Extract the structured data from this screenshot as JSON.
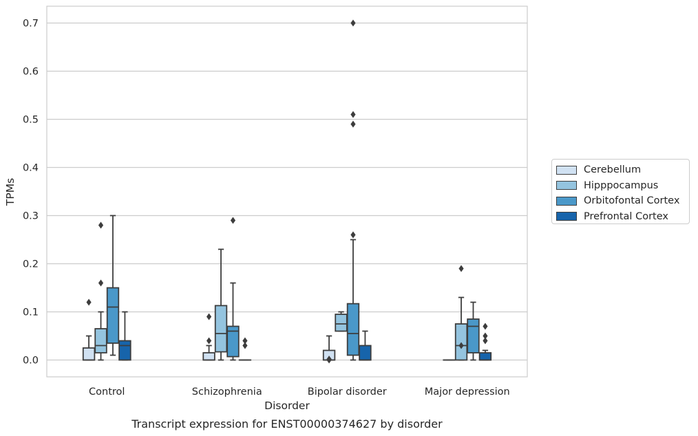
{
  "chart_data": {
    "type": "box",
    "title": "Transcript expression for ENST00000374627 by disorder",
    "xlabel": "Disorder",
    "ylabel": "TPMs",
    "ylim": [
      -0.035,
      0.735
    ],
    "yticks": [
      "0.0",
      "0.1",
      "0.2",
      "0.3",
      "0.4",
      "0.5",
      "0.6",
      "0.7"
    ],
    "grid": true,
    "legend_position": "right",
    "categories": [
      "Control",
      "Schizophrenia",
      "Bipolar disorder",
      "Major depression"
    ],
    "series": [
      {
        "name": "Cerebellum",
        "color": "#d0e1f2",
        "boxes": [
          {
            "min": 0.0,
            "q1": 0.0,
            "median": 0.0,
            "q3": 0.025,
            "max": 0.05,
            "outliers": [
              0.12
            ]
          },
          {
            "min": 0.0,
            "q1": 0.0,
            "median": 0.0,
            "q3": 0.015,
            "max": 0.03,
            "outliers": [
              0.04,
              0.09
            ]
          },
          {
            "min": 0.0,
            "q1": 0.0,
            "median": 0.0,
            "q3": 0.02,
            "max": 0.05,
            "outliers": [
              0.0,
              0.002
            ]
          },
          {
            "min": 0.0,
            "q1": 0.0,
            "median": 0.0,
            "q3": 0.0,
            "max": 0.0,
            "outliers": []
          }
        ]
      },
      {
        "name": "Hipppocampus",
        "color": "#94c4df",
        "boxes": [
          {
            "min": 0.0,
            "q1": 0.015,
            "median": 0.03,
            "q3": 0.065,
            "max": 0.1,
            "outliers": [
              0.16,
              0.28
            ]
          },
          {
            "min": 0.0,
            "q1": 0.017,
            "median": 0.055,
            "q3": 0.113,
            "max": 0.23,
            "outliers": []
          },
          {
            "min": 0.06,
            "q1": 0.06,
            "median": 0.075,
            "q3": 0.095,
            "max": 0.1,
            "outliers": []
          },
          {
            "min": 0.0,
            "q1": 0.0,
            "median": 0.03,
            "q3": 0.075,
            "max": 0.13,
            "outliers": [
              0.03,
              0.19
            ]
          }
        ]
      },
      {
        "name": "Orbitofontal Cortex",
        "color": "#4a98c9",
        "boxes": [
          {
            "min": 0.01,
            "q1": 0.035,
            "median": 0.11,
            "q3": 0.15,
            "max": 0.3,
            "outliers": []
          },
          {
            "min": 0.0,
            "q1": 0.007,
            "median": 0.06,
            "q3": 0.07,
            "max": 0.16,
            "outliers": [
              0.29
            ]
          },
          {
            "min": 0.0,
            "q1": 0.01,
            "median": 0.055,
            "q3": 0.117,
            "max": 0.25,
            "outliers": [
              0.26,
              0.49,
              0.51,
              0.7
            ]
          },
          {
            "min": 0.0,
            "q1": 0.015,
            "median": 0.07,
            "q3": 0.085,
            "max": 0.12,
            "outliers": []
          }
        ]
      },
      {
        "name": "Prefrontal Cortex",
        "color": "#1764ab",
        "boxes": [
          {
            "min": 0.0,
            "q1": 0.0,
            "median": 0.03,
            "q3": 0.04,
            "max": 0.1,
            "outliers": []
          },
          {
            "min": 0.0,
            "q1": 0.0,
            "median": 0.0,
            "q3": 0.0,
            "max": 0.0,
            "outliers": [
              0.03,
              0.04
            ]
          },
          {
            "min": 0.0,
            "q1": 0.0,
            "median": 0.0,
            "q3": 0.03,
            "max": 0.06,
            "outliers": []
          },
          {
            "min": 0.0,
            "q1": 0.0,
            "median": 0.0,
            "q3": 0.015,
            "max": 0.02,
            "outliers": [
              0.04,
              0.05,
              0.07
            ]
          }
        ]
      }
    ]
  }
}
